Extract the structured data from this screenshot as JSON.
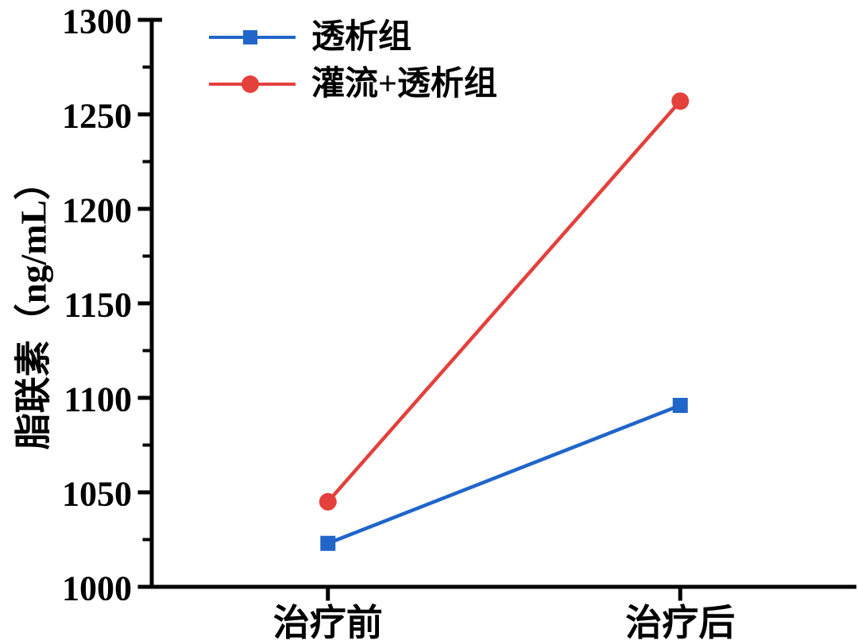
{
  "chart_data": {
    "type": "line",
    "title": "",
    "xlabel": "",
    "ylabel": "脂联素（ng/mL）",
    "categories": [
      "治疗前",
      "治疗后"
    ],
    "y_ticks": [
      "1000",
      "1050",
      "1100",
      "1150",
      "1200",
      "1250",
      "1300"
    ],
    "ylim": [
      1000,
      1300
    ],
    "y_minor_step": 25,
    "grid": false,
    "legend_position": "top-left-inside",
    "axis_color": "#000000",
    "background": "#ffffff",
    "series": [
      {
        "name": "透析组",
        "marker": "square",
        "color": "#2065C9",
        "values": [
          1023,
          1096
        ]
      },
      {
        "name": "灌流+透析组",
        "marker": "circle",
        "color": "#E4403C",
        "values": [
          1045,
          1257
        ]
      }
    ]
  }
}
